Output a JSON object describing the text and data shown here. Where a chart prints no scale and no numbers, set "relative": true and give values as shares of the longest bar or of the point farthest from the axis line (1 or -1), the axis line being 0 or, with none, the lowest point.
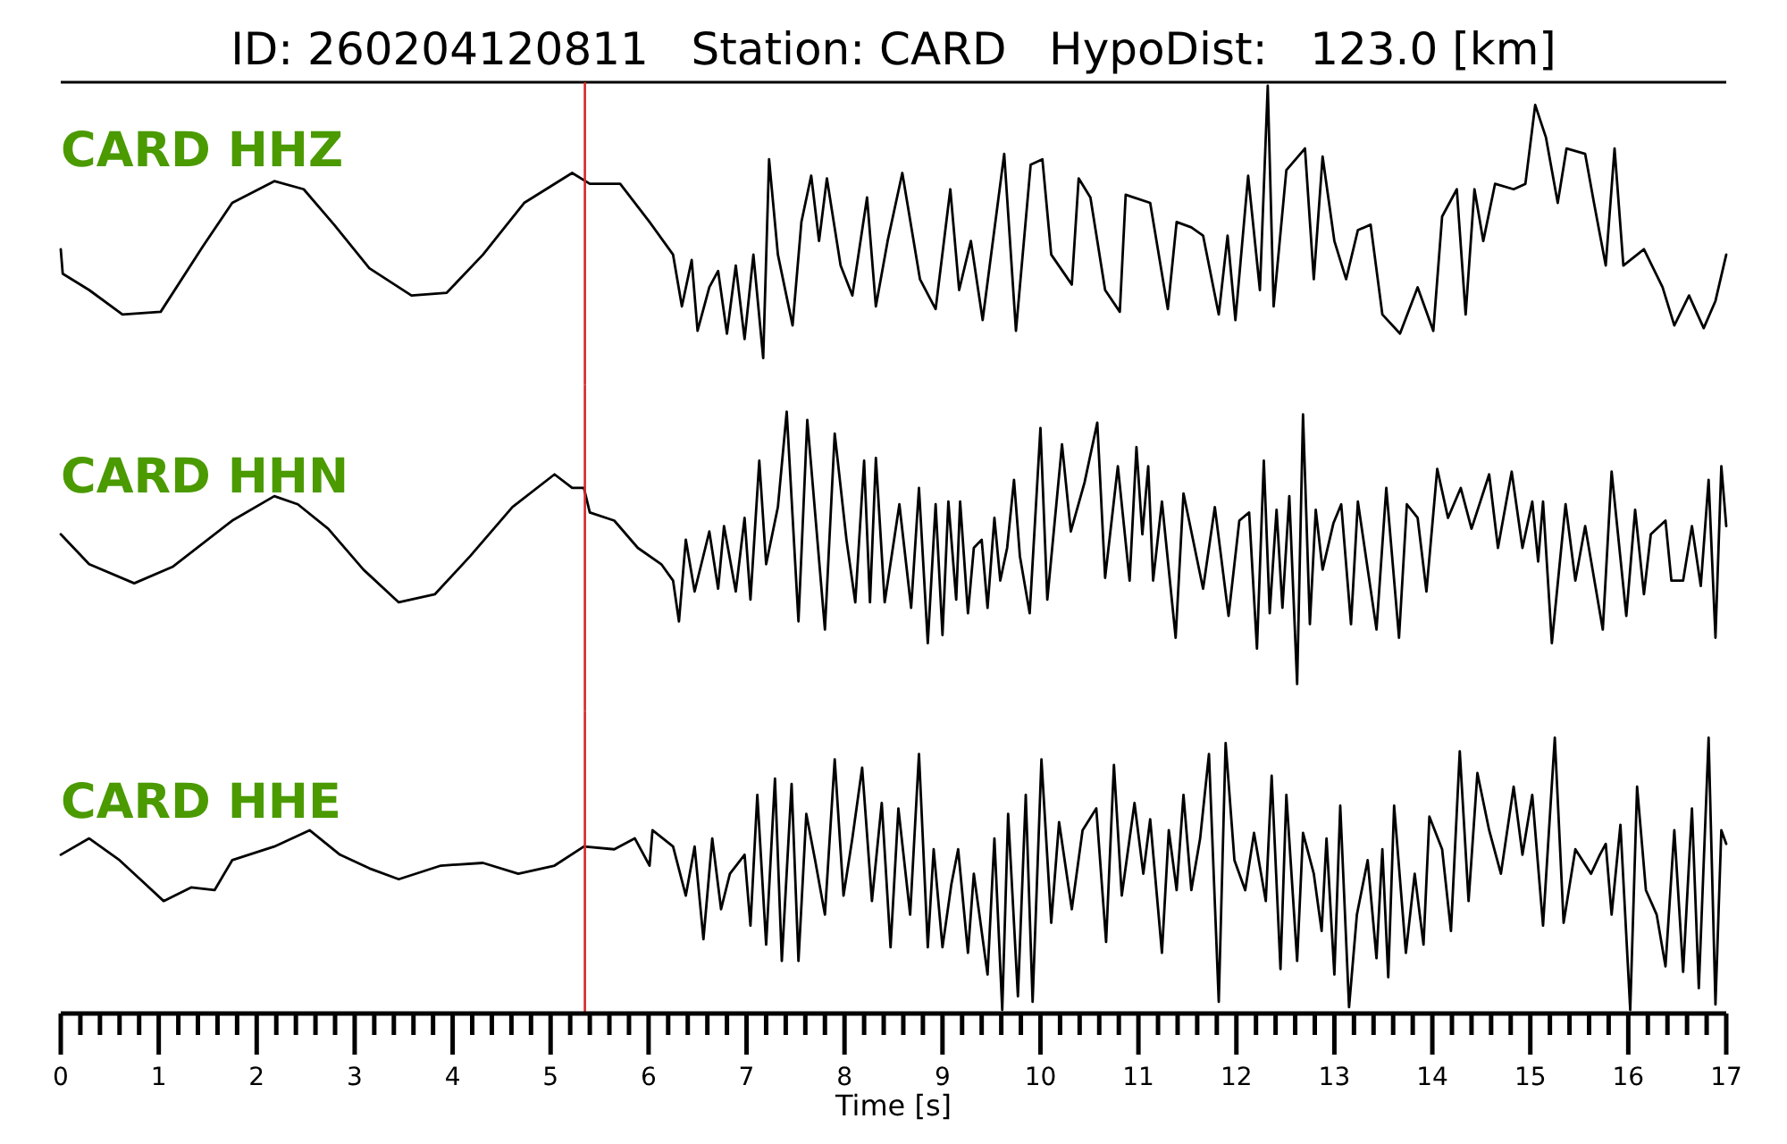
{
  "chart_data": [
    {
      "type": "line",
      "title": "ID: 260204120811   Station: CARD   HypoDist:   123.0 [km]",
      "relative": true,
      "xlim": [
        0,
        17
      ],
      "tick_labels": false,
      "ref_lines": [
        {
          "axis": "x",
          "value": 5.35,
          "color": "#d62728"
        }
      ],
      "series": [
        {
          "name": "CARD HHZ",
          "color": "#000000",
          "x": [
            0,
            0.02,
            0.29,
            0.63,
            1.02,
            1.45,
            1.75,
            2.18,
            2.48,
            2.79,
            3.15,
            3.58,
            3.94,
            4.31,
            4.73,
            5.22,
            5.4,
            5.71,
            6.01,
            6.25,
            6.34,
            6.44,
            6.5,
            6.62,
            6.71,
            6.8,
            6.89,
            6.98,
            7.07,
            7.17,
            7.23,
            7.32,
            7.47,
            7.56,
            7.66,
            7.74,
            7.82,
            7.96,
            8.08,
            8.23,
            8.32,
            8.44,
            8.59,
            8.77,
            8.93,
            9.08,
            9.17,
            9.29,
            9.41,
            9.63,
            9.75,
            9.9,
            10.02,
            10.11,
            10.32,
            10.39,
            10.51,
            10.66,
            10.81,
            10.87,
            11.12,
            11.3,
            11.39,
            11.54,
            11.66,
            11.82,
            11.91,
            11.99,
            12.12,
            12.24,
            12.32,
            12.38,
            12.51,
            12.7,
            12.79,
            12.88,
            13.0,
            13.12,
            13.24,
            13.37,
            13.49,
            13.67,
            13.85,
            14.01,
            14.1,
            14.25,
            14.34,
            14.43,
            14.52,
            14.64,
            14.83,
            14.95,
            15.05,
            15.16,
            15.28,
            15.37,
            15.56,
            15.65,
            15.77,
            15.86,
            15.95,
            16.16,
            16.35,
            16.47,
            16.62,
            16.77,
            16.89,
            17.0
          ],
          "values": [
            0.4,
            0.31,
            0.25,
            0.16,
            0.17,
            0.41,
            0.57,
            0.65,
            0.62,
            0.49,
            0.33,
            0.23,
            0.24,
            0.38,
            0.57,
            0.68,
            0.64,
            0.64,
            0.5,
            0.38,
            0.19,
            0.36,
            0.1,
            0.26,
            0.32,
            0.09,
            0.34,
            0.07,
            0.38,
            0,
            0.73,
            0.38,
            0.12,
            0.5,
            0.67,
            0.43,
            0.66,
            0.34,
            0.23,
            0.59,
            0.19,
            0.43,
            0.68,
            0.29,
            0.18,
            0.62,
            0.25,
            0.43,
            0.14,
            0.75,
            0.1,
            0.71,
            0.73,
            0.38,
            0.27,
            0.66,
            0.59,
            0.25,
            0.17,
            0.6,
            0.57,
            0.18,
            0.5,
            0.48,
            0.45,
            0.16,
            0.45,
            0.14,
            0.67,
            0.25,
            1,
            0.19,
            0.69,
            0.77,
            0.29,
            0.74,
            0.43,
            0.29,
            0.47,
            0.49,
            0.16,
            0.09,
            0.26,
            0.1,
            0.52,
            0.62,
            0.16,
            0.62,
            0.43,
            0.64,
            0.62,
            0.64,
            0.93,
            0.81,
            0.57,
            0.77,
            0.75,
            0.57,
            0.34,
            0.77,
            0.34,
            0.4,
            0.26,
            0.12,
            0.23,
            0.11,
            0.21,
            0.38
          ]
        }
      ]
    },
    {
      "type": "line",
      "relative": true,
      "xlim": [
        0,
        17
      ],
      "tick_labels": false,
      "ref_lines": [
        {
          "axis": "x",
          "value": 5.35,
          "color": "#d62728"
        }
      ],
      "series": [
        {
          "name": "CARD HHN",
          "color": "#000000",
          "x": [
            0,
            0.29,
            0.75,
            1.14,
            1.75,
            2.18,
            2.42,
            2.73,
            3.09,
            3.45,
            3.82,
            4.18,
            4.61,
            5.04,
            5.22,
            5.34,
            5.4,
            5.65,
            5.89,
            6.13,
            6.25,
            6.31,
            6.38,
            6.47,
            6.62,
            6.71,
            6.77,
            6.89,
            6.98,
            7.04,
            7.13,
            7.2,
            7.32,
            7.41,
            7.53,
            7.62,
            7.8,
            7.9,
            8.02,
            8.11,
            8.2,
            8.26,
            8.32,
            8.41,
            8.56,
            8.68,
            8.76,
            8.85,
            8.93,
            9.0,
            9.06,
            9.14,
            9.18,
            9.26,
            9.32,
            9.4,
            9.46,
            9.53,
            9.59,
            9.66,
            9.73,
            9.79,
            9.89,
            10.0,
            10.07,
            10.22,
            10.31,
            10.45,
            10.58,
            10.66,
            10.79,
            10.91,
            10.98,
            11.04,
            11.1,
            11.15,
            11.24,
            11.38,
            11.46,
            11.66,
            11.78,
            11.92,
            12.03,
            12.13,
            12.21,
            12.28,
            12.34,
            12.41,
            12.47,
            12.54,
            12.62,
            12.68,
            12.75,
            12.81,
            12.88,
            12.99,
            13.07,
            13.17,
            13.24,
            13.43,
            13.53,
            13.66,
            13.74,
            13.85,
            13.94,
            14.05,
            14.16,
            14.29,
            14.4,
            14.58,
            14.67,
            14.81,
            14.92,
            15.02,
            15.08,
            15.13,
            15.22,
            15.36,
            15.46,
            15.56,
            15.74,
            15.83,
            15.98,
            16.07,
            16.16,
            16.23,
            16.38,
            16.44,
            16.56,
            16.65,
            16.74,
            16.82,
            16.89,
            16.95,
            17.0
          ],
          "values": [
            0.55,
            0.44,
            0.37,
            0.43,
            0.6,
            0.69,
            0.66,
            0.57,
            0.42,
            0.3,
            0.33,
            0.47,
            0.65,
            0.77,
            0.72,
            0.72,
            0.63,
            0.6,
            0.5,
            0.44,
            0.38,
            0.23,
            0.53,
            0.34,
            0.56,
            0.35,
            0.58,
            0.34,
            0.61,
            0.31,
            0.82,
            0.44,
            0.65,
            1,
            0.23,
            0.97,
            0.2,
            0.92,
            0.53,
            0.3,
            0.82,
            0.3,
            0.83,
            0.3,
            0.66,
            0.28,
            0.72,
            0.15,
            0.66,
            0.18,
            0.67,
            0.31,
            0.67,
            0.26,
            0.5,
            0.53,
            0.28,
            0.61,
            0.38,
            0.5,
            0.75,
            0.47,
            0.26,
            0.94,
            0.31,
            0.88,
            0.56,
            0.74,
            0.96,
            0.39,
            0.8,
            0.38,
            0.87,
            0.55,
            0.8,
            0.38,
            0.67,
            0.17,
            0.7,
            0.35,
            0.65,
            0.25,
            0.6,
            0.63,
            0.13,
            0.82,
            0.26,
            0.64,
            0.28,
            0.69,
            0,
            0.99,
            0.22,
            0.64,
            0.42,
            0.59,
            0.66,
            0.22,
            0.67,
            0.2,
            0.72,
            0.17,
            0.66,
            0.61,
            0.34,
            0.79,
            0.61,
            0.72,
            0.57,
            0.77,
            0.5,
            0.78,
            0.5,
            0.67,
            0.45,
            0.67,
            0.15,
            0.66,
            0.38,
            0.58,
            0.2,
            0.78,
            0.25,
            0.64,
            0.33,
            0.55,
            0.6,
            0.38,
            0.38,
            0.58,
            0.36,
            0.75,
            0.17,
            0.8,
            0.58
          ]
        }
      ]
    },
    {
      "type": "line",
      "relative": true,
      "xlim": [
        0,
        17
      ],
      "tick_labels": "x",
      "xlabel": "Time [s]",
      "xticks": [
        0,
        {
          "value": 0.2,
          "label": null
        },
        {
          "value": 0.4,
          "label": null
        },
        {
          "value": 0.6,
          "label": null
        },
        {
          "value": 0.8,
          "label": null
        },
        1,
        {
          "value": 1.2,
          "label": null
        },
        {
          "value": 1.4,
          "label": null
        },
        {
          "value": 1.6,
          "label": null
        },
        {
          "value": 1.8,
          "label": null
        },
        2,
        {
          "value": 2.2,
          "label": null
        },
        {
          "value": 2.4,
          "label": null
        },
        {
          "value": 2.6,
          "label": null
        },
        {
          "value": 2.8,
          "label": null
        },
        3,
        {
          "value": 3.2,
          "label": null
        },
        {
          "value": 3.4,
          "label": null
        },
        {
          "value": 3.6,
          "label": null
        },
        {
          "value": 3.8,
          "label": null
        },
        4,
        {
          "value": 4.2,
          "label": null
        },
        {
          "value": 4.4,
          "label": null
        },
        {
          "value": 4.6,
          "label": null
        },
        {
          "value": 4.8,
          "label": null
        },
        5,
        {
          "value": 5.2,
          "label": null
        },
        {
          "value": 5.4,
          "label": null
        },
        {
          "value": 5.6,
          "label": null
        },
        {
          "value": 5.8,
          "label": null
        },
        6,
        {
          "value": 6.2,
          "label": null
        },
        {
          "value": 6.4,
          "label": null
        },
        {
          "value": 6.6,
          "label": null
        },
        {
          "value": 6.8,
          "label": null
        },
        7,
        {
          "value": 7.2,
          "label": null
        },
        {
          "value": 7.4,
          "label": null
        },
        {
          "value": 7.6,
          "label": null
        },
        {
          "value": 7.8,
          "label": null
        },
        8,
        {
          "value": 8.2,
          "label": null
        },
        {
          "value": 8.4,
          "label": null
        },
        {
          "value": 8.6,
          "label": null
        },
        {
          "value": 8.8,
          "label": null
        },
        9,
        {
          "value": 9.2,
          "label": null
        },
        {
          "value": 9.4,
          "label": null
        },
        {
          "value": 9.6,
          "label": null
        },
        {
          "value": 9.8,
          "label": null
        },
        10,
        {
          "value": 10.2,
          "label": null
        },
        {
          "value": 10.4,
          "label": null
        },
        {
          "value": 10.6,
          "label": null
        },
        {
          "value": 10.8,
          "label": null
        },
        11,
        {
          "value": 11.2,
          "label": null
        },
        {
          "value": 11.4,
          "label": null
        },
        {
          "value": 11.6,
          "label": null
        },
        {
          "value": 11.8,
          "label": null
        },
        12,
        {
          "value": 12.2,
          "label": null
        },
        {
          "value": 12.4,
          "label": null
        },
        {
          "value": 12.6,
          "label": null
        },
        {
          "value": 12.8,
          "label": null
        },
        13,
        {
          "value": 13.2,
          "label": null
        },
        {
          "value": 13.4,
          "label": null
        },
        {
          "value": 13.6,
          "label": null
        },
        {
          "value": 13.8,
          "label": null
        },
        14,
        {
          "value": 14.2,
          "label": null
        },
        {
          "value": 14.4,
          "label": null
        },
        {
          "value": 14.6,
          "label": null
        },
        {
          "value": 14.8,
          "label": null
        },
        15,
        {
          "value": 15.2,
          "label": null
        },
        {
          "value": 15.4,
          "label": null
        },
        {
          "value": 15.6,
          "label": null
        },
        {
          "value": 15.8,
          "label": null
        },
        16,
        {
          "value": 16.2,
          "label": null
        },
        {
          "value": 16.4,
          "label": null
        },
        {
          "value": 16.6,
          "label": null
        },
        {
          "value": 16.8,
          "label": null
        },
        17
      ],
      "ref_lines": [
        {
          "axis": "x",
          "value": 5.35,
          "color": "#d62728"
        }
      ],
      "series": [
        {
          "name": "CARD HHE",
          "color": "#000000",
          "x": [
            0,
            0.29,
            0.6,
            0.84,
            1.05,
            1.33,
            1.57,
            1.75,
            2.18,
            2.54,
            2.85,
            3.15,
            3.45,
            3.88,
            4.31,
            4.67,
            5.04,
            5.34,
            5.65,
            5.86,
            6.01,
            6.04,
            6.25,
            6.38,
            6.47,
            6.56,
            6.65,
            6.74,
            6.83,
            6.98,
            7.04,
            7.11,
            7.2,
            7.29,
            7.36,
            7.46,
            7.53,
            7.61,
            7.7,
            7.8,
            7.9,
            7.99,
            8.08,
            8.18,
            8.28,
            8.38,
            8.47,
            8.55,
            8.67,
            8.76,
            8.85,
            8.91,
            9.0,
            9.09,
            9.16,
            9.26,
            9.32,
            9.46,
            9.53,
            9.61,
            9.67,
            9.77,
            9.85,
            9.92,
            10.01,
            10.11,
            10.19,
            10.32,
            10.43,
            10.57,
            10.67,
            10.75,
            10.83,
            10.96,
            11.05,
            11.12,
            11.24,
            11.31,
            11.39,
            11.46,
            11.54,
            11.63,
            11.72,
            11.82,
            11.89,
            11.98,
            12.09,
            12.18,
            12.3,
            12.36,
            12.45,
            12.51,
            12.62,
            12.68,
            12.79,
            12.87,
            12.92,
            13.0,
            13.06,
            13.15,
            13.23,
            13.34,
            13.43,
            13.49,
            13.55,
            13.61,
            13.73,
            13.82,
            13.91,
            13.97,
            14.1,
            14.19,
            14.28,
            14.37,
            14.46,
            14.58,
            14.7,
            14.83,
            14.92,
            15.02,
            15.13,
            15.25,
            15.34,
            15.46,
            15.62,
            15.71,
            15.77,
            15.83,
            15.92,
            16.02,
            16.09,
            16.18,
            16.29,
            16.38,
            16.47,
            16.56,
            16.65,
            16.72,
            16.82,
            16.89,
            16.95,
            17.0
          ],
          "values": [
            0.57,
            0.63,
            0.55,
            0.47,
            0.4,
            0.45,
            0.44,
            0.55,
            0.6,
            0.66,
            0.57,
            0.52,
            0.48,
            0.53,
            0.54,
            0.5,
            0.53,
            0.6,
            0.59,
            0.63,
            0.53,
            0.66,
            0.6,
            0.42,
            0.6,
            0.26,
            0.63,
            0.37,
            0.5,
            0.57,
            0.31,
            0.79,
            0.24,
            0.85,
            0.18,
            0.83,
            0.18,
            0.72,
            0.55,
            0.35,
            0.92,
            0.42,
            0.63,
            0.89,
            0.4,
            0.76,
            0.23,
            0.74,
            0.35,
            0.94,
            0.23,
            0.59,
            0.23,
            0.46,
            0.59,
            0.21,
            0.5,
            0.13,
            0.63,
            0,
            0.72,
            0.05,
            0.79,
            0.03,
            0.92,
            0.32,
            0.69,
            0.37,
            0.66,
            0.74,
            0.25,
            0.9,
            0.42,
            0.76,
            0.5,
            0.7,
            0.21,
            0.66,
            0.44,
            0.79,
            0.44,
            0.63,
            0.94,
            0.03,
            0.98,
            0.55,
            0.44,
            0.65,
            0.4,
            0.86,
            0.15,
            0.79,
            0.18,
            0.65,
            0.5,
            0.29,
            0.63,
            0.13,
            0.75,
            0.01,
            0.35,
            0.55,
            0.19,
            0.59,
            0.12,
            0.75,
            0.21,
            0.5,
            0.24,
            0.71,
            0.59,
            0.29,
            0.95,
            0.4,
            0.87,
            0.66,
            0.5,
            0.82,
            0.57,
            0.79,
            0.31,
            1,
            0.32,
            0.59,
            0.5,
            0.57,
            0.61,
            0.35,
            0.68,
            0,
            0.82,
            0.44,
            0.35,
            0.16,
            0.66,
            0.14,
            0.74,
            0.08,
            1,
            0.02,
            0.66,
            0.61
          ]
        }
      ]
    }
  ]
}
